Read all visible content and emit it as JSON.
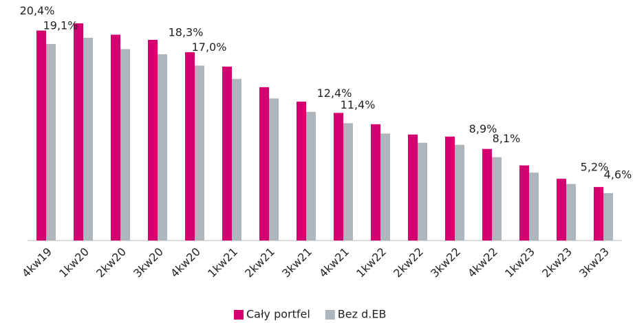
{
  "chart_data": {
    "type": "bar",
    "categories": [
      "4kw19",
      "1kw20",
      "2kw20",
      "3kw20",
      "4kw20",
      "1kw21",
      "2kw21",
      "3kw21",
      "4kw21",
      "1kw22",
      "2kw22",
      "3kw22",
      "4kw22",
      "1kw23",
      "2kw23",
      "3kw23"
    ],
    "series": [
      {
        "name": "Cały portfel",
        "color": "#d4006f",
        "values": [
          20.4,
          21.1,
          20.0,
          19.5,
          18.3,
          16.9,
          14.9,
          13.5,
          12.4,
          11.3,
          10.3,
          10.1,
          8.9,
          7.3,
          6.0,
          5.2
        ],
        "value_labels": [
          "20,4%",
          null,
          null,
          null,
          "18,3%",
          null,
          null,
          null,
          "12,4%",
          null,
          null,
          null,
          "8,9%",
          null,
          null,
          "5,2%"
        ]
      },
      {
        "name": "Bez d.EB",
        "color": "#adb5bd",
        "values": [
          19.1,
          19.7,
          18.6,
          18.1,
          17.0,
          15.7,
          13.8,
          12.5,
          11.4,
          10.4,
          9.5,
          9.3,
          8.1,
          6.6,
          5.5,
          4.6
        ],
        "value_labels": [
          "19,1%",
          null,
          null,
          null,
          "17,0%",
          null,
          null,
          null,
          "11,4%",
          null,
          null,
          null,
          "8,1%",
          null,
          null,
          "4,6%"
        ]
      }
    ],
    "ylim": [
      0,
      21.5
    ],
    "legend": "bottom"
  }
}
